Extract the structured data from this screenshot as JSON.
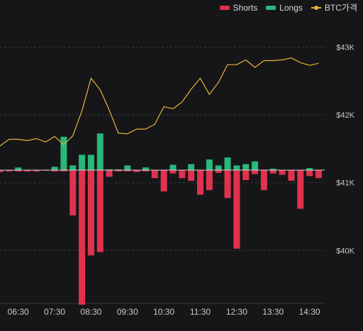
{
  "colors": {
    "background": "#161618",
    "shorts": "#e0324e",
    "longs": "#28b87a",
    "price": "#e6b33a",
    "grid": "#3a3a3f",
    "text": "#c9c9cd"
  },
  "chart_data": {
    "type": "bar",
    "legend": {
      "position": "top-right",
      "items": [
        {
          "label": "Shorts",
          "color": "#e0324e",
          "kind": "bar"
        },
        {
          "label": "Longs",
          "color": "#28b87a",
          "kind": "bar"
        },
        {
          "label": "BTC가격",
          "color": "#e6b33a",
          "kind": "line"
        }
      ]
    },
    "grid": true,
    "y_axis_right": {
      "ticks": [
        {
          "value": 43000,
          "label": "$43K"
        },
        {
          "value": 42000,
          "label": "$42K"
        },
        {
          "value": 41000,
          "label": "$41K"
        },
        {
          "value": 40000,
          "label": "$40K"
        }
      ],
      "range": [
        39220,
        43380
      ]
    },
    "x_axis": {
      "range": [
        "06:00",
        "14:55"
      ],
      "ticks": [
        "06:30",
        "07:30",
        "08:30",
        "09:30",
        "10:30",
        "11:30",
        "12:30",
        "13:30",
        "14:30"
      ]
    },
    "bar_times": [
      "06:00",
      "06:15",
      "06:30",
      "06:45",
      "07:00",
      "07:15",
      "07:30",
      "07:45",
      "08:00",
      "08:15",
      "08:30",
      "08:45",
      "09:00",
      "09:15",
      "09:30",
      "09:45",
      "10:00",
      "10:15",
      "10:30",
      "10:45",
      "11:00",
      "11:15",
      "11:30",
      "11:45",
      "12:00",
      "12:15",
      "12:30",
      "12:45",
      "13:00",
      "13:15",
      "13:30",
      "13:45",
      "14:00",
      "14:15",
      "14:30",
      "14:45"
    ],
    "series": [
      {
        "name": "Shorts",
        "values": [
          0.3,
          0.2,
          0.2,
          0.2,
          0.2,
          0.1,
          0.2,
          0.2,
          6.8,
          20.2,
          12.8,
          12.3,
          1.0,
          0.2,
          0.2,
          0.3,
          0.2,
          1.2,
          3.2,
          0.5,
          1.2,
          1.6,
          3.7,
          3.0,
          0.4,
          4.2,
          11.8,
          1.5,
          0.6,
          3.0,
          0.5,
          0.7,
          1.6,
          5.8,
          0.9,
          1.2
        ]
      },
      {
        "name": "Longs",
        "values": [
          0.0,
          0.0,
          0.4,
          0.0,
          0.0,
          0.0,
          0.5,
          5.0,
          0.7,
          2.3,
          2.3,
          5.5,
          0.1,
          0.1,
          0.7,
          0.0,
          0.4,
          0.0,
          0.0,
          0.8,
          0.0,
          0.9,
          0.0,
          1.6,
          0.7,
          1.9,
          0.7,
          0.9,
          1.3,
          0.0,
          0.2,
          0.0,
          0.0,
          0.0,
          0.3,
          0.0
        ]
      },
      {
        "name": "BTC가격",
        "values": [
          41540,
          41640,
          41640,
          41620,
          41650,
          41600,
          41680,
          41560,
          41690,
          42060,
          42540,
          42370,
          42070,
          41730,
          41720,
          41790,
          41790,
          41860,
          42120,
          42090,
          42190,
          42380,
          42540,
          42300,
          42480,
          42740,
          42740,
          42810,
          42700,
          42800,
          42800,
          42810,
          42840,
          42770,
          42730,
          42760
        ]
      }
    ]
  }
}
